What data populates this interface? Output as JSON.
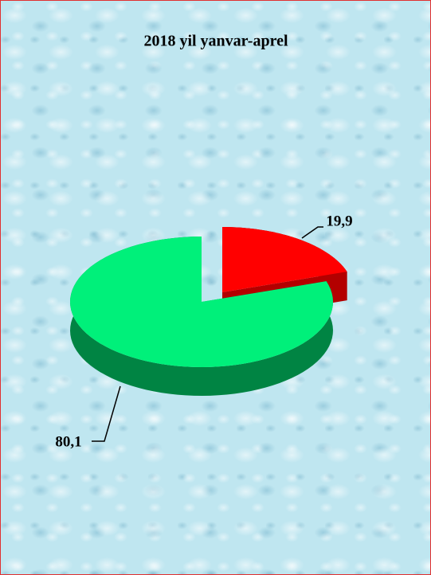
{
  "chart_data": {
    "type": "pie",
    "title": "2018 yil yanvar-aprel",
    "values": [
      19.9,
      80.1
    ],
    "value_labels": [
      "19,9",
      "80,1"
    ],
    "colors": [
      "#ff0000",
      "#00f07a"
    ]
  }
}
